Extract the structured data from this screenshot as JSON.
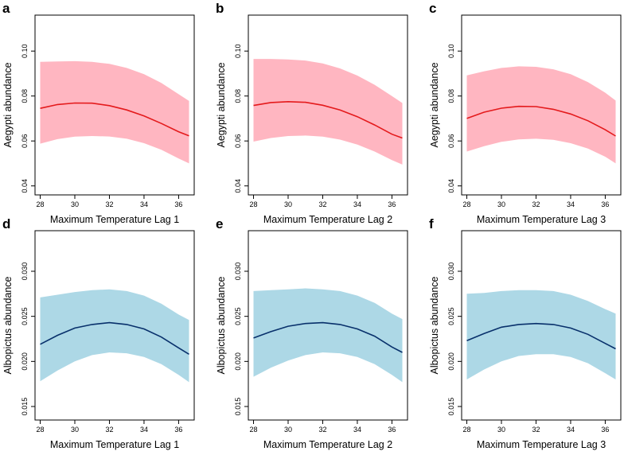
{
  "figure": {
    "colors": {
      "aegypti_band": "#ffb6c1",
      "aegypti_line": "#e41a1c",
      "albopictus_band": "#add8e6",
      "albopictus_line": "#08306b"
    }
  },
  "chart_data": [
    {
      "type": "line",
      "panel": "a",
      "xlabel": "Maximum Temperature Lag 1",
      "ylabel": "Aegypti abundance",
      "xlim": [
        27.7,
        36.9
      ],
      "ylim": [
        0.036,
        0.116
      ],
      "x_ticks": [
        28,
        30,
        32,
        34,
        36
      ],
      "x_tick_labels": [
        "28",
        "30",
        "32",
        "34",
        "36"
      ],
      "y_ticks": [
        0.04,
        0.06,
        0.08,
        0.1
      ],
      "y_tick_labels": [
        "0.04",
        "0.06",
        "0.08",
        "0.10"
      ],
      "series": [
        {
          "name": "fit",
          "x": [
            28,
            29,
            30,
            31,
            32,
            33,
            34,
            35,
            36,
            36.6
          ],
          "values": [
            0.0745,
            0.0762,
            0.0769,
            0.0768,
            0.0757,
            0.0738,
            0.0711,
            0.0678,
            0.0641,
            0.0623
          ]
        },
        {
          "name": "upper",
          "x": [
            28,
            29,
            30,
            31,
            32,
            33,
            34,
            35,
            36,
            36.6
          ],
          "values": [
            0.0952,
            0.0954,
            0.0955,
            0.0952,
            0.0943,
            0.0925,
            0.0897,
            0.0858,
            0.0808,
            0.0778
          ]
        },
        {
          "name": "lower",
          "x": [
            28,
            29,
            30,
            31,
            32,
            33,
            34,
            35,
            36,
            36.6
          ],
          "values": [
            0.0588,
            0.0608,
            0.0619,
            0.0622,
            0.062,
            0.061,
            0.059,
            0.0561,
            0.0522,
            0.05
          ]
        }
      ]
    },
    {
      "type": "line",
      "panel": "b",
      "xlabel": "Maximum Temperature Lag 2",
      "ylabel": "Aegypti abundance",
      "xlim": [
        27.7,
        36.9
      ],
      "ylim": [
        0.036,
        0.116
      ],
      "x_ticks": [
        28,
        30,
        32,
        34,
        36
      ],
      "x_tick_labels": [
        "28",
        "30",
        "32",
        "34",
        "36"
      ],
      "y_ticks": [
        0.04,
        0.06,
        0.08,
        0.1
      ],
      "y_tick_labels": [
        "0.04",
        "0.06",
        "0.08",
        "0.10"
      ],
      "series": [
        {
          "name": "fit",
          "x": [
            28,
            29,
            30,
            31,
            32,
            33,
            34,
            35,
            36,
            36.6
          ],
          "values": [
            0.0758,
            0.0771,
            0.0775,
            0.0772,
            0.0759,
            0.0738,
            0.0708,
            0.0671,
            0.063,
            0.0613
          ]
        },
        {
          "name": "upper",
          "x": [
            28,
            29,
            30,
            31,
            32,
            33,
            34,
            35,
            36,
            36.6
          ],
          "values": [
            0.0965,
            0.0965,
            0.0963,
            0.0958,
            0.0945,
            0.0923,
            0.0891,
            0.085,
            0.08,
            0.0769
          ]
        },
        {
          "name": "lower",
          "x": [
            28,
            29,
            30,
            31,
            32,
            33,
            34,
            35,
            36,
            36.6
          ],
          "values": [
            0.0597,
            0.0613,
            0.0622,
            0.0624,
            0.0619,
            0.0606,
            0.0584,
            0.0553,
            0.0515,
            0.0495
          ]
        }
      ]
    },
    {
      "type": "line",
      "panel": "c",
      "xlabel": "Maximum Temperature Lag 3",
      "ylabel": "Aegypti abundance",
      "xlim": [
        27.7,
        36.9
      ],
      "ylim": [
        0.036,
        0.116
      ],
      "x_ticks": [
        28,
        30,
        32,
        34,
        36
      ],
      "x_tick_labels": [
        "28",
        "30",
        "32",
        "34",
        "36"
      ],
      "y_ticks": [
        0.04,
        0.06,
        0.08,
        0.1
      ],
      "y_tick_labels": [
        "0.04",
        "0.06",
        "0.08",
        "0.10"
      ],
      "series": [
        {
          "name": "fit",
          "x": [
            28,
            29,
            30,
            31,
            32,
            33,
            34,
            35,
            36,
            36.6
          ],
          "values": [
            0.07,
            0.0728,
            0.0746,
            0.0754,
            0.0753,
            0.0741,
            0.072,
            0.069,
            0.065,
            0.0622
          ]
        },
        {
          "name": "upper",
          "x": [
            28,
            29,
            30,
            31,
            32,
            33,
            34,
            35,
            36,
            36.6
          ],
          "values": [
            0.0892,
            0.091,
            0.0925,
            0.0932,
            0.093,
            0.0919,
            0.0897,
            0.0862,
            0.0815,
            0.078
          ]
        },
        {
          "name": "lower",
          "x": [
            28,
            29,
            30,
            31,
            32,
            33,
            34,
            35,
            36,
            36.6
          ],
          "values": [
            0.0553,
            0.0577,
            0.0596,
            0.0607,
            0.061,
            0.0605,
            0.059,
            0.0566,
            0.053,
            0.05
          ]
        }
      ]
    },
    {
      "type": "line",
      "panel": "d",
      "xlabel": "Maximum Temperature Lag 1",
      "ylabel": "Albopictus abundance",
      "xlim": [
        27.7,
        36.9
      ],
      "ylim": [
        0.0135,
        0.0345
      ],
      "x_ticks": [
        28,
        30,
        32,
        34,
        36
      ],
      "x_tick_labels": [
        "28",
        "30",
        "32",
        "34",
        "36"
      ],
      "y_ticks": [
        0.015,
        0.02,
        0.025,
        0.03
      ],
      "y_tick_labels": [
        "0.015",
        "0.020",
        "0.025",
        "0.030"
      ],
      "series": [
        {
          "name": "fit",
          "x": [
            28,
            29,
            30,
            31,
            32,
            33,
            34,
            35,
            36,
            36.6
          ],
          "values": [
            0.0219,
            0.0229,
            0.0237,
            0.0241,
            0.0243,
            0.0241,
            0.0236,
            0.0227,
            0.0215,
            0.0208
          ]
        },
        {
          "name": "upper",
          "x": [
            28,
            29,
            30,
            31,
            32,
            33,
            34,
            35,
            36,
            36.6
          ],
          "values": [
            0.0271,
            0.0274,
            0.0277,
            0.0279,
            0.028,
            0.0278,
            0.0273,
            0.0264,
            0.0252,
            0.0246
          ]
        },
        {
          "name": "lower",
          "x": [
            28,
            29,
            30,
            31,
            32,
            33,
            34,
            35,
            36,
            36.6
          ],
          "values": [
            0.0178,
            0.019,
            0.02,
            0.0207,
            0.021,
            0.0209,
            0.0205,
            0.0197,
            0.0185,
            0.0177
          ]
        }
      ]
    },
    {
      "type": "line",
      "panel": "e",
      "xlabel": "Maximum Temperature Lag 2",
      "ylabel": "Albopictus abundance",
      "xlim": [
        27.7,
        36.9
      ],
      "ylim": [
        0.0135,
        0.0345
      ],
      "x_ticks": [
        28,
        30,
        32,
        34,
        36
      ],
      "x_tick_labels": [
        "28",
        "30",
        "32",
        "34",
        "36"
      ],
      "y_ticks": [
        0.015,
        0.02,
        0.025,
        0.03
      ],
      "y_tick_labels": [
        "0.015",
        "0.020",
        "0.025",
        "0.030"
      ],
      "series": [
        {
          "name": "fit",
          "x": [
            28,
            29,
            30,
            31,
            32,
            33,
            34,
            35,
            36,
            36.6
          ],
          "values": [
            0.0226,
            0.0233,
            0.0239,
            0.0242,
            0.0243,
            0.0241,
            0.0236,
            0.0228,
            0.0216,
            0.021
          ]
        },
        {
          "name": "upper",
          "x": [
            28,
            29,
            30,
            31,
            32,
            33,
            34,
            35,
            36,
            36.6
          ],
          "values": [
            0.0278,
            0.0279,
            0.028,
            0.0281,
            0.028,
            0.0278,
            0.0273,
            0.0265,
            0.0253,
            0.0247
          ]
        },
        {
          "name": "lower",
          "x": [
            28,
            29,
            30,
            31,
            32,
            33,
            34,
            35,
            36,
            36.6
          ],
          "values": [
            0.0183,
            0.0193,
            0.0201,
            0.0207,
            0.021,
            0.0209,
            0.0205,
            0.0197,
            0.0185,
            0.0177
          ]
        }
      ]
    },
    {
      "type": "line",
      "panel": "f",
      "xlabel": "Maximum Temperature Lag 3",
      "ylabel": "Albopictus abundance",
      "xlim": [
        27.7,
        36.9
      ],
      "ylim": [
        0.0135,
        0.0345
      ],
      "x_ticks": [
        28,
        30,
        32,
        34,
        36
      ],
      "x_tick_labels": [
        "28",
        "30",
        "32",
        "34",
        "36"
      ],
      "y_ticks": [
        0.015,
        0.02,
        0.025,
        0.03
      ],
      "y_tick_labels": [
        "0.015",
        "0.020",
        "0.025",
        "0.030"
      ],
      "series": [
        {
          "name": "fit",
          "x": [
            28,
            29,
            30,
            31,
            32,
            33,
            34,
            35,
            36,
            36.6
          ],
          "values": [
            0.0223,
            0.0231,
            0.0238,
            0.0241,
            0.0242,
            0.0241,
            0.0237,
            0.023,
            0.022,
            0.0214
          ]
        },
        {
          "name": "upper",
          "x": [
            28,
            29,
            30,
            31,
            32,
            33,
            34,
            35,
            36,
            36.6
          ],
          "values": [
            0.0275,
            0.0276,
            0.0278,
            0.0279,
            0.0279,
            0.0278,
            0.0274,
            0.0267,
            0.0258,
            0.0253
          ]
        },
        {
          "name": "lower",
          "x": [
            28,
            29,
            30,
            31,
            32,
            33,
            34,
            35,
            36,
            36.6
          ],
          "values": [
            0.018,
            0.0191,
            0.02,
            0.0206,
            0.0208,
            0.0208,
            0.0205,
            0.0198,
            0.0187,
            0.018
          ]
        }
      ]
    }
  ]
}
